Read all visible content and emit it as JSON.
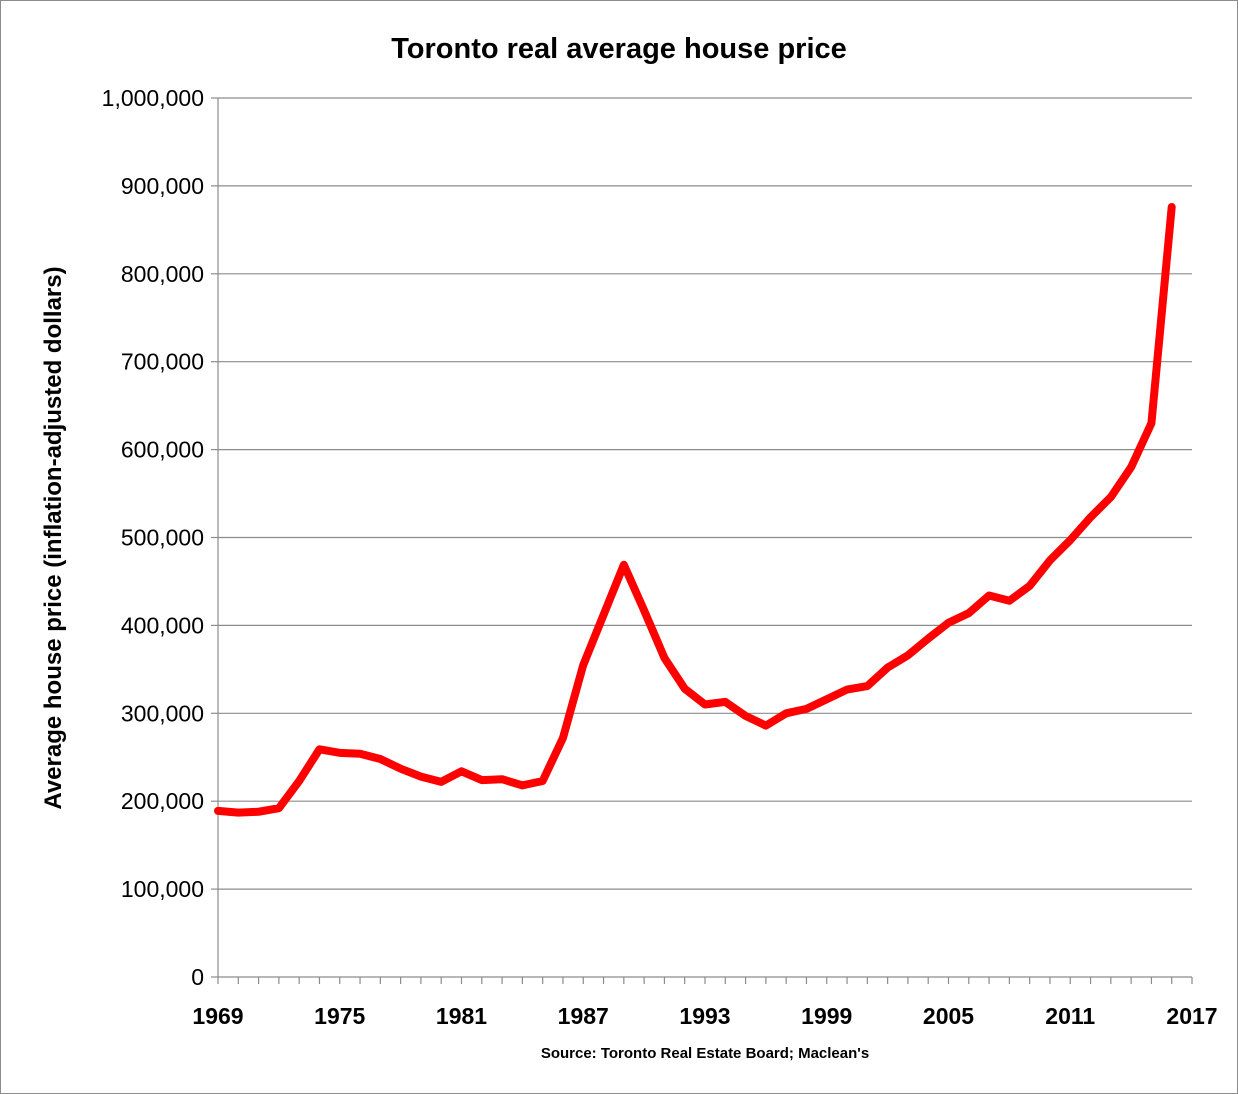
{
  "chart_data": {
    "type": "line",
    "title": "Toronto real average house price",
    "ylabel": "Average house price (inflation-adjusted dollars)",
    "xlabel": "",
    "source": "Source: Toronto Real Estate Board; Maclean's",
    "ylim": [
      0,
      1000000
    ],
    "yticks": [
      0,
      100000,
      200000,
      300000,
      400000,
      500000,
      600000,
      700000,
      800000,
      900000,
      1000000
    ],
    "ytick_labels": [
      "0",
      "100,000",
      "200,000",
      "300,000",
      "400,000",
      "500,000",
      "600,000",
      "700,000",
      "800,000",
      "900,000",
      "1,000,000"
    ],
    "xlim": [
      1969,
      2017
    ],
    "xtick_labels": [
      "1969",
      "1975",
      "1981",
      "1987",
      "1993",
      "1999",
      "2005",
      "2011",
      "2017"
    ],
    "grid": true,
    "line_color": "#ff0000",
    "series": [
      {
        "x": [
          1969,
          1970,
          1971,
          1972,
          1973,
          1974,
          1975,
          1976,
          1977,
          1978,
          1979,
          1980,
          1981,
          1982,
          1983,
          1984,
          1985,
          1986,
          1987,
          1988,
          1989,
          1990,
          1991,
          1992,
          1993,
          1994,
          1995,
          1996,
          1997,
          1998,
          1999,
          2000,
          2001,
          2002,
          2003,
          2004,
          2005,
          2006,
          2007,
          2008,
          2009,
          2010,
          2011,
          2012,
          2013,
          2014,
          2015,
          2016
        ],
        "values": [
          189000,
          187000,
          188000,
          192000,
          223000,
          259000,
          255000,
          254000,
          248000,
          237000,
          228000,
          222000,
          234000,
          224000,
          225000,
          218000,
          223000,
          272000,
          355000,
          412000,
          469000,
          417000,
          363000,
          328000,
          310000,
          313000,
          297000,
          286000,
          300000,
          305000,
          316000,
          327000,
          331000,
          352000,
          366000,
          385000,
          403000,
          414000,
          434000,
          428000,
          445000,
          474000,
          497000,
          523000,
          546000,
          580000,
          630000,
          876000
        ]
      }
    ]
  }
}
